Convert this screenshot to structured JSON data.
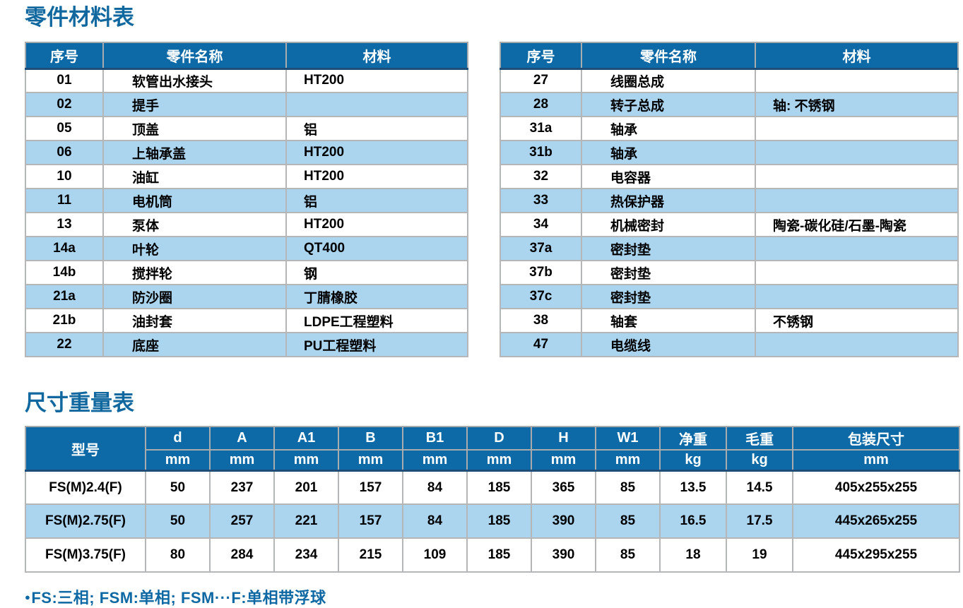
{
  "colors": {
    "header_bg": "#0d6aa6",
    "row_alt": "#abd4ee",
    "title_text": "#11689f",
    "footnote_text": "#0e68a3"
  },
  "parts_section": {
    "title": "零件材料表",
    "columns": [
      "序号",
      "零件名称",
      "材料"
    ],
    "left_table": {
      "rows": [
        [
          "01",
          "软管出水接头",
          "HT200"
        ],
        [
          "02",
          "提手",
          ""
        ],
        [
          "05",
          "顶盖",
          "铝"
        ],
        [
          "06",
          "上轴承盖",
          "HT200"
        ],
        [
          "10",
          "油缸",
          "HT200"
        ],
        [
          "11",
          "电机筒",
          "铝"
        ],
        [
          "13",
          "泵体",
          "HT200"
        ],
        [
          "14a",
          "叶轮",
          "QT400"
        ],
        [
          "14b",
          "搅拌轮",
          "钢"
        ],
        [
          "21a",
          "防沙圈",
          "丁腈橡胶"
        ],
        [
          "21b",
          "油封套",
          "LDPE工程塑料"
        ],
        [
          "22",
          "底座",
          "PU工程塑料"
        ]
      ]
    },
    "right_table": {
      "rows": [
        [
          "27",
          "线圈总成",
          ""
        ],
        [
          "28",
          "转子总成",
          "轴: 不锈钢"
        ],
        [
          "31a",
          "轴承",
          ""
        ],
        [
          "31b",
          "轴承",
          ""
        ],
        [
          "32",
          "电容器",
          ""
        ],
        [
          "33",
          "热保护器",
          ""
        ],
        [
          "34",
          "机械密封",
          "陶瓷-碳化硅/石墨-陶瓷"
        ],
        [
          "37a",
          "密封垫",
          ""
        ],
        [
          "37b",
          "密封垫",
          ""
        ],
        [
          "37c",
          "密封垫",
          ""
        ],
        [
          "38",
          "轴套",
          "不锈钢"
        ],
        [
          "47",
          "电缆线",
          ""
        ]
      ]
    }
  },
  "dimensions_section": {
    "title": "尺寸重量表",
    "model_header": "型号",
    "columns": [
      {
        "label": "d",
        "unit": "mm"
      },
      {
        "label": "A",
        "unit": "mm"
      },
      {
        "label": "A1",
        "unit": "mm"
      },
      {
        "label": "B",
        "unit": "mm"
      },
      {
        "label": "B1",
        "unit": "mm"
      },
      {
        "label": "D",
        "unit": "mm"
      },
      {
        "label": "H",
        "unit": "mm"
      },
      {
        "label": "W1",
        "unit": "mm"
      },
      {
        "label": "净重",
        "unit": "kg"
      },
      {
        "label": "毛重",
        "unit": "kg"
      },
      {
        "label": "包装尺寸",
        "unit": "mm"
      }
    ],
    "rows": [
      {
        "model": "FS(M)2.4(F)",
        "values": [
          "50",
          "237",
          "201",
          "157",
          "84",
          "185",
          "365",
          "85",
          "13.5",
          "14.5",
          "405x255x255"
        ]
      },
      {
        "model": "FS(M)2.75(F)",
        "values": [
          "50",
          "257",
          "221",
          "157",
          "84",
          "185",
          "390",
          "85",
          "16.5",
          "17.5",
          "445x265x255"
        ]
      },
      {
        "model": "FS(M)3.75(F)",
        "values": [
          "80",
          "284",
          "234",
          "215",
          "109",
          "185",
          "390",
          "85",
          "18",
          "19",
          "445x295x255"
        ]
      }
    ]
  },
  "footnote": {
    "bullet": "●",
    "text": "FS:三相; FSM:单相; FSM···F:单相带浮球"
  }
}
